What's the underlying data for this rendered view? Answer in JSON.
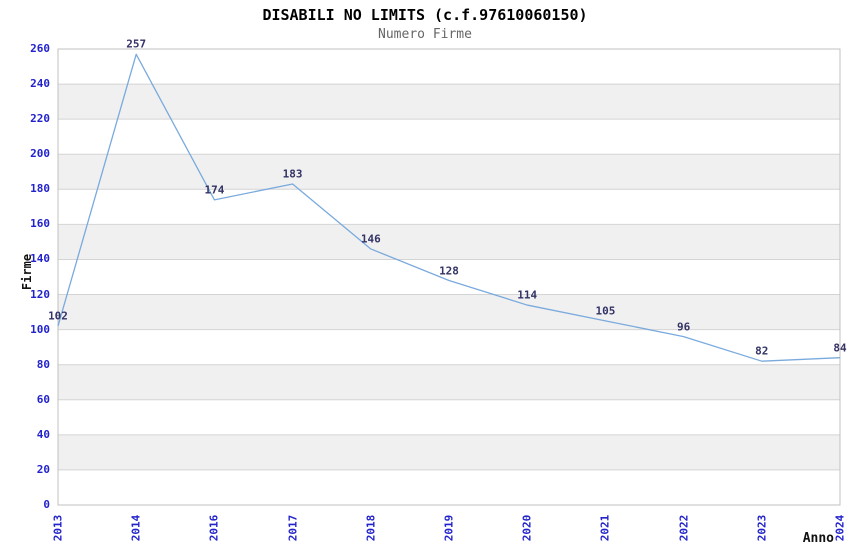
{
  "chart_data": {
    "type": "line",
    "title": "DISABILI NO LIMITS (c.f.97610060150)",
    "subtitle": "Numero Firme",
    "xlabel": "Anno",
    "ylabel": "Firme",
    "categories": [
      "2013",
      "2014",
      "2016",
      "2017",
      "2018",
      "2019",
      "2020",
      "2021",
      "2022",
      "2023",
      "2024"
    ],
    "values": [
      102,
      257,
      174,
      183,
      146,
      128,
      114,
      105,
      96,
      82,
      84
    ],
    "ylim": [
      0,
      260
    ],
    "ytick_step": 20,
    "grid": "horizontal-lines-with-alternating-bands",
    "legend": "none",
    "data_labels_shown": true,
    "colors": {
      "line": "#7aaadd",
      "tick_labels": "#2222cc",
      "data_labels": "#333366",
      "band_fill": "#f0f0f0",
      "grid_line": "#d4d4d4",
      "plot_border": "#c0c0c0",
      "title": "#000000",
      "subtitle": "#666666",
      "axis_titles": "#111111",
      "background": "#ffffff"
    }
  }
}
